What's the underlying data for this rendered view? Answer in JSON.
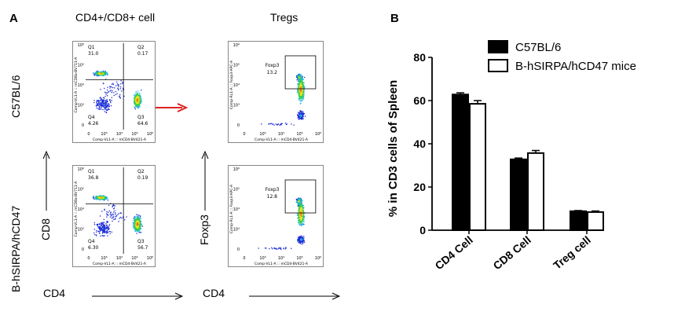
{
  "panel_a": {
    "letter": "A",
    "col_titles": [
      "CD4+/CD8+ cell",
      "Tregs"
    ],
    "row_labels": [
      "C57BL/6",
      "B-hSIRPA/hCD47"
    ],
    "axis_labels": {
      "y_left": "CD8",
      "x_left": "CD4",
      "y_right": "Foxp3",
      "x_right": "CD4"
    },
    "plots": [
      {
        "id": "c57-cd4cd8",
        "ylabel": "Comp-VL1-A :: mCD8a-BV711-A",
        "xlabel": "Comp-VL1-A :: mCD4-BV421-A",
        "q": [
          {
            "name": "Q1",
            "value": "31.0"
          },
          {
            "name": "Q2",
            "value": "0.17"
          },
          {
            "name": "Q3",
            "value": "64.6"
          },
          {
            "name": "Q4",
            "value": "4.26"
          }
        ]
      },
      {
        "id": "c57-treg",
        "ylabel": "Comp-RL1-A :: Foxp3-APC-A",
        "xlabel": "Comp-VL1-A :: mCD4-BV421-A",
        "gate": {
          "name": "Foxp3",
          "value": "13.2"
        }
      },
      {
        "id": "hsirpa-cd4cd8",
        "ylabel": "Comp-VL1-A :: mCD8a-BV711-A",
        "xlabel": "Comp-VL1-A :: mCD4-BV421-A",
        "q": [
          {
            "name": "Q1",
            "value": "36.8"
          },
          {
            "name": "Q2",
            "value": "0.19"
          },
          {
            "name": "Q3",
            "value": "56.7"
          },
          {
            "name": "Q4",
            "value": "6.30"
          }
        ]
      },
      {
        "id": "hsirpa-treg",
        "ylabel": "Comp-RL1-A :: Foxp3-APC-A",
        "xlabel": "Comp-VL1-A :: mCD4-BV421-A",
        "gate": {
          "name": "Foxp3",
          "value": "12.8"
        }
      }
    ],
    "x_ticks": [
      "0",
      "10³",
      "10⁴",
      "10⁵",
      "10⁶"
    ],
    "y_ticks": [
      "10⁶",
      "10⁵",
      "10⁴",
      "10³",
      "0"
    ],
    "arrow_color": "#e02020"
  },
  "panel_b": {
    "letter": "B"
  },
  "chart_data": {
    "type": "bar",
    "categories": [
      "CD4 Cell",
      "CD8 Cell",
      "Treg cell"
    ],
    "series": [
      {
        "name": "C57BL/6",
        "values": [
          62.8,
          32.8,
          8.8
        ],
        "errors": [
          0.8,
          0.6,
          0.3
        ],
        "fill": "#000000"
      },
      {
        "name": "B-hSIRPA/hCD47 mice",
        "values": [
          58.5,
          35.7,
          8.4
        ],
        "errors": [
          1.5,
          1.2,
          0.5
        ],
        "fill": "#ffffff"
      }
    ],
    "ylabel": "% in CD3 cells of Spleen",
    "ylim": [
      0,
      80
    ],
    "yticks": [
      0,
      20,
      40,
      60,
      80
    ],
    "legend_position": "top-right",
    "grid": false
  }
}
